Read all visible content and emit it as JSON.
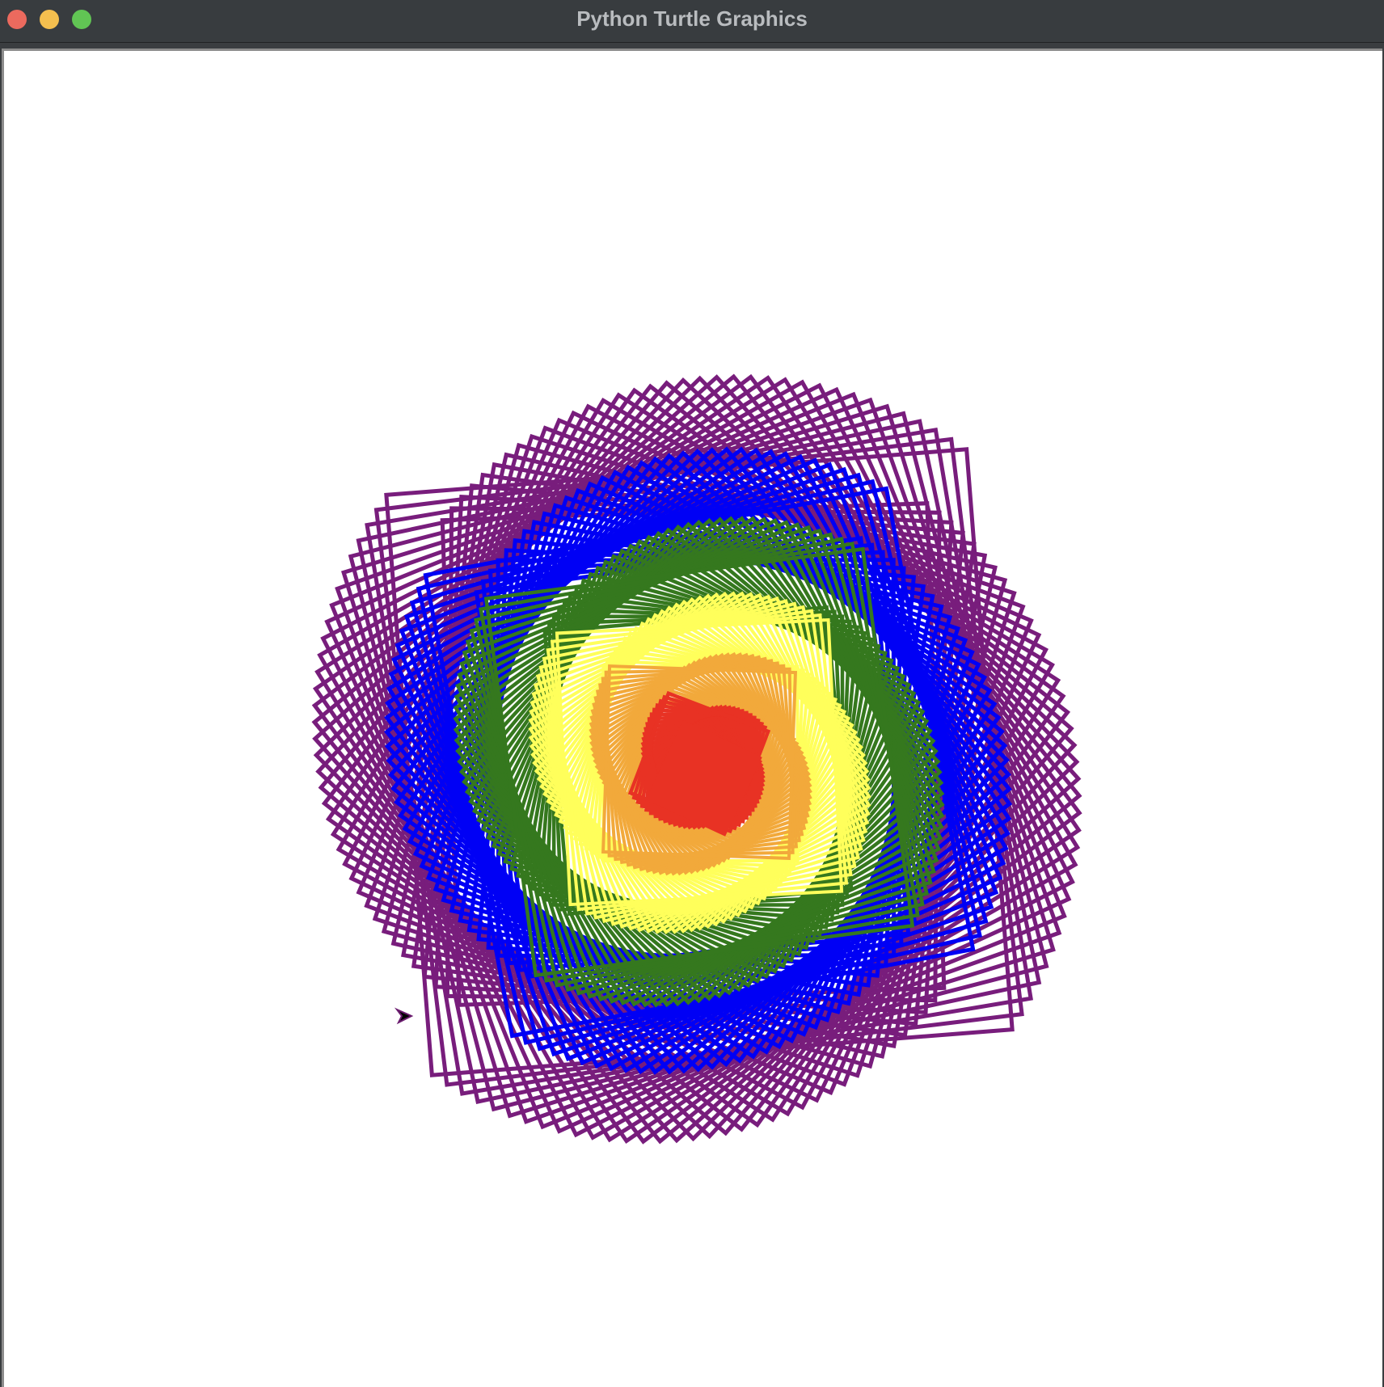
{
  "window": {
    "title": "Python Turtle Graphics",
    "buttons": [
      "close",
      "minimize",
      "maximize"
    ]
  },
  "canvas": {
    "background": "#ffffff",
    "drawing": "nested rotating square spiral",
    "layers_inner_to_outer": [
      {
        "color": "#e83224",
        "pen": "red"
      },
      {
        "color": "#f2a93b",
        "pen": "orange"
      },
      {
        "color": "#ffff5b",
        "pen": "yellow"
      },
      {
        "color": "#35781e",
        "pen": "green"
      },
      {
        "color": "#0000f5",
        "pen": "blue"
      },
      {
        "color": "#781d7c",
        "pen": "purple"
      }
    ],
    "cursor": {
      "icon": "turtle-arrow-icon",
      "color": "#000000"
    }
  }
}
